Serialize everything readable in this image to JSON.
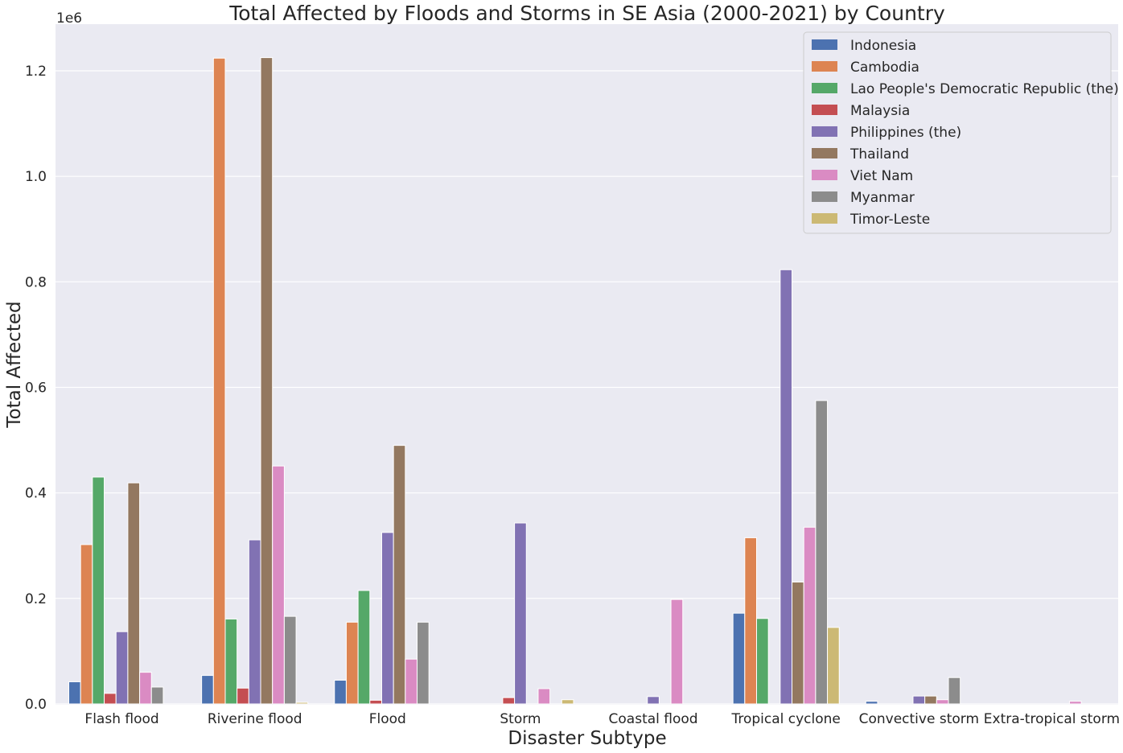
{
  "chart_data": {
    "type": "bar",
    "title": "Total Affected by Floods and Storms in SE Asia (2000-2021) by Country",
    "xlabel": "Disaster Subtype",
    "ylabel": "Total Affected",
    "y_offset_label": "1e6",
    "ylim": [
      0,
      1.28
    ],
    "yticks": [
      "0.0",
      "0.2",
      "0.4",
      "0.6",
      "0.8",
      "1.0",
      "1.2"
    ],
    "grid": true,
    "legend_position": "top-right",
    "categories": [
      "Flash flood",
      "Riverine flood",
      "Flood",
      "Storm",
      "Coastal flood",
      "Tropical cyclone",
      "Convective storm",
      "Extra-tropical storm"
    ],
    "series": [
      {
        "name": "Indonesia",
        "color": "#4c72b0",
        "values": [
          0.042,
          0.054,
          0.045,
          0,
          0,
          0.172,
          0.005,
          0
        ]
      },
      {
        "name": "Cambodia",
        "color": "#dd8452",
        "values": [
          0.302,
          1.224,
          0.155,
          0,
          0,
          0.315,
          0,
          0
        ]
      },
      {
        "name": "Lao People's Democratic Republic (the)",
        "color": "#55a868",
        "values": [
          0.43,
          0.161,
          0.215,
          0,
          0,
          0.162,
          0,
          0
        ]
      },
      {
        "name": "Malaysia",
        "color": "#c44e52",
        "values": [
          0.02,
          0.03,
          0.007,
          0.012,
          0,
          0,
          0,
          0
        ]
      },
      {
        "name": "Philippines (the)",
        "color": "#8172b3",
        "values": [
          0.137,
          0.311,
          0.325,
          0.343,
          0.014,
          0.823,
          0.015,
          0
        ]
      },
      {
        "name": "Thailand",
        "color": "#937860",
        "values": [
          0.419,
          1.225,
          0.49,
          0,
          0,
          0.231,
          0.015,
          0
        ]
      },
      {
        "name": "Viet Nam",
        "color": "#da8bc3",
        "values": [
          0.06,
          0.451,
          0.085,
          0.029,
          0.198,
          0.335,
          0.008,
          0.005
        ]
      },
      {
        "name": "Myanmar",
        "color": "#8c8c8c",
        "values": [
          0.032,
          0.166,
          0.155,
          0,
          0,
          0.575,
          0.05,
          0
        ]
      },
      {
        "name": "Timor-Leste",
        "color": "#ccb974",
        "values": [
          0,
          0.003,
          0,
          0.008,
          0,
          0.145,
          0,
          0
        ]
      }
    ]
  }
}
